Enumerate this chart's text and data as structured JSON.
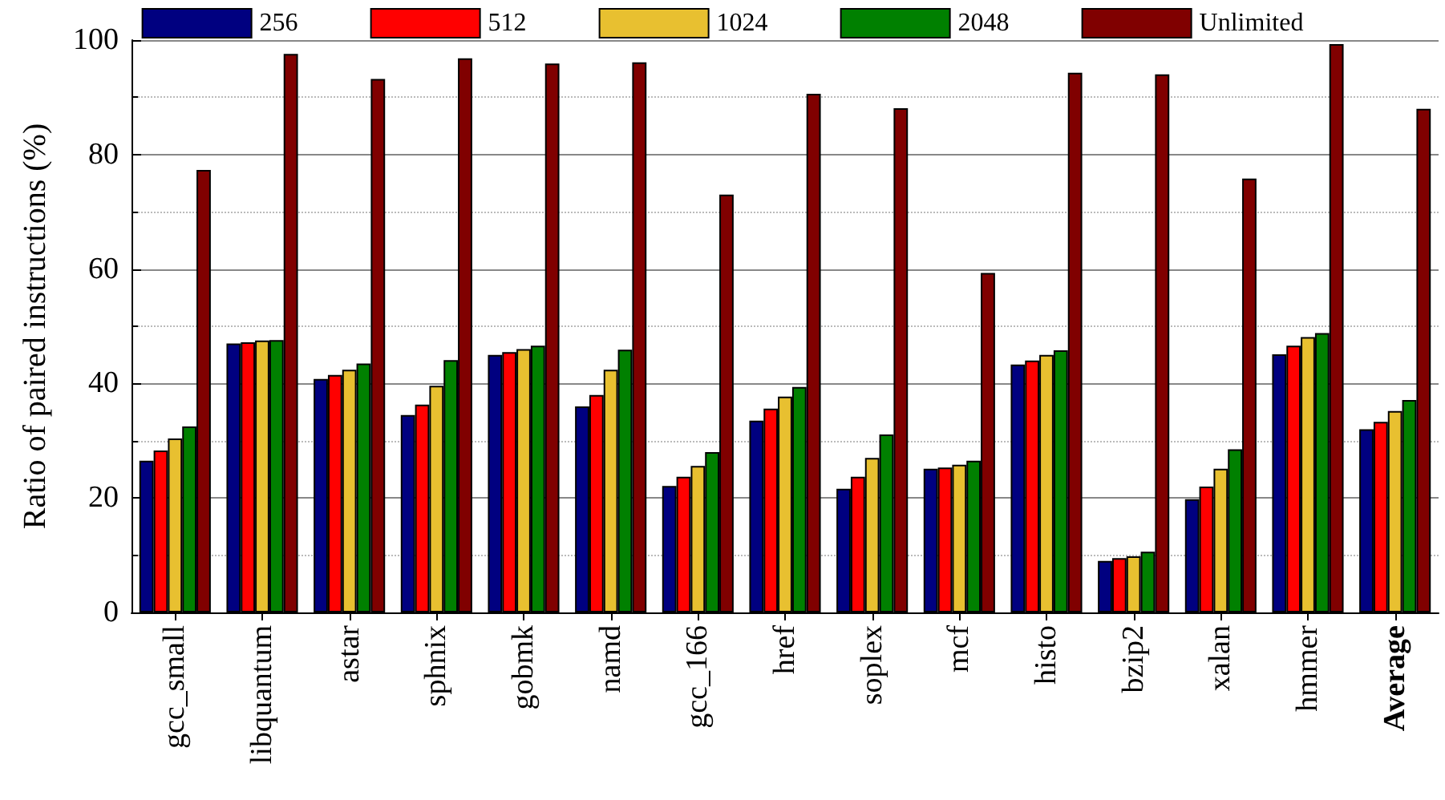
{
  "chart_data": {
    "type": "bar",
    "ylabel": "Ratio of paired instructions (%)",
    "categories": [
      "gcc_small",
      "libquantum",
      "astar",
      "sphnix",
      "gobmk",
      "namd",
      "gcc_166",
      "href",
      "soplex",
      "mcf",
      "histo",
      "bzip2",
      "xalan",
      "hmmer",
      "Average"
    ],
    "series": [
      {
        "name": "256",
        "color": "#000080",
        "values": [
          26.5,
          47,
          40.8,
          34.5,
          45,
          36,
          22.1,
          33.5,
          21.6,
          25.1,
          43.3,
          9,
          19.8,
          45.1,
          32
        ]
      },
      {
        "name": "512",
        "color": "#ff0000",
        "values": [
          28.3,
          47.2,
          41.5,
          36.3,
          45.5,
          38,
          23.7,
          35.6,
          23.7,
          25.3,
          44,
          9.5,
          22,
          46.6,
          33.3
        ]
      },
      {
        "name": "1024",
        "color": "#e8c030",
        "values": [
          30.4,
          47.5,
          42.4,
          39.6,
          46,
          42.4,
          25.6,
          37.7,
          27,
          25.8,
          45,
          9.8,
          25.1,
          48.1,
          35.2
        ]
      },
      {
        "name": "2048",
        "color": "#008000",
        "values": [
          32.5,
          47.6,
          43.5,
          44.1,
          46.6,
          45.9,
          28,
          39.4,
          31.1,
          26.5,
          45.8,
          10.6,
          28.5,
          48.8,
          37.1
        ]
      },
      {
        "name": "Unlimited",
        "color": "#800000",
        "values": [
          77.3,
          97.6,
          93.2,
          96.8,
          95.9,
          96.1,
          73,
          90.6,
          88.1,
          59.3,
          94.3,
          94,
          75.8,
          99.3,
          88
        ]
      }
    ],
    "ylim": [
      0,
      100
    ],
    "yticks": [
      0,
      20,
      40,
      60,
      80,
      100
    ],
    "grid": "y",
    "legend": "top"
  }
}
